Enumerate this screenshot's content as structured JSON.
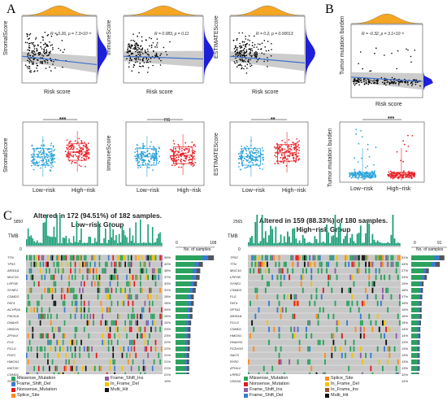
{
  "panels": {
    "a": "A",
    "b": "B",
    "c": "C"
  },
  "scatter_titles": [
    "StromalScore",
    "ImmuneScore",
    "ESTIMATEScore",
    "Tumor mutation burden"
  ],
  "box_titles": [
    "StromalScore",
    "ImmuneScore",
    "ESTIMATEScore",
    "Tumor mutation burden"
  ],
  "risk_label": "Risk score",
  "stats": [
    {
      "r": "R = 0.26, p = 7.3×10⁻⁶",
      "sig": "***"
    },
    {
      "r": "R = 0.083, p = 0.11",
      "sig": "ns"
    },
    {
      "r": "R = 0.2, p = 0.00013",
      "sig": "**"
    },
    {
      "r": "R = -0.32, p = 3.1×10⁻⁹",
      "sig": "***"
    }
  ],
  "groups": [
    "Low−risk",
    "High−risk"
  ],
  "colors": {
    "low": "#2aa2d8",
    "high": "#e8232a",
    "density": "#f5a623",
    "marginal": "#1f1fd8",
    "trend": "#3a6fd0",
    "band": "#bfbfbf",
    "gray": "#c8c8c8"
  },
  "oncoprints": [
    {
      "title": "Altered in 172 (94.51%) of 182 samples.",
      "group": "Low−risk Group",
      "tmb_label": "TMB",
      "tmb_max": "5850",
      "tmb_min": "0",
      "axis_0": "0",
      "axis_max": "108",
      "axis_label": "No. of samples",
      "genes": [
        "TTN",
        "TP53",
        "ARID1A",
        "MUC16",
        "LRP1B",
        "SYNE1",
        "CSMD3",
        "FAT4",
        "ACVR2A",
        "PIK3CA",
        "DNAH5",
        "OBSCN",
        "ZFHX4",
        "FLG",
        "PCLO",
        "PLEC",
        "HMCN1",
        "KMT2D",
        "CSMD1",
        "SYNE2"
      ],
      "pcts": [
        "59%",
        "42%",
        "38%",
        "37%",
        "33%",
        "31%",
        "28%",
        "28%",
        "26%",
        "26%",
        "24%",
        "23%",
        "23%",
        "22%",
        "22%",
        "21%",
        "21%",
        "21%",
        "21%",
        "19%"
      ]
    },
    {
      "title": "Altered in 159 (88.33%) of 180 samples.",
      "group": "High−risk Group",
      "tmb_label": "TMB",
      "tmb_max": "2565",
      "tmb_min": "0",
      "axis_0": "0",
      "axis_max": "91",
      "axis_label": "No. of samples",
      "genes": [
        "TP53",
        "TTN",
        "MUC16",
        "LRP1B",
        "SYNE1",
        "CSMD3",
        "FLG",
        "FAT4",
        "SPTA1",
        "ARID1A",
        "PCLO",
        "CSMD1",
        "HMCN1",
        "DNAH11",
        "PCDH15",
        "SACS",
        "RYR2",
        "ZFHX4",
        "LRRK2",
        "USH2A"
      ],
      "pcts": [
        "51%",
        "44%",
        "27%",
        "24%",
        "19%",
        "18%",
        "17%",
        "16%",
        "16%",
        "16%",
        "15%",
        "14%",
        "14%",
        "13%",
        "13%",
        "13%",
        "13%",
        "13%",
        "12%",
        "12%"
      ]
    }
  ],
  "legend_left": [
    {
      "label": "Missense_Mutation",
      "color": "#2ca25f"
    },
    {
      "label": "Frame_Shift_Ins",
      "color": "#8e5ea2"
    },
    {
      "label": "Frame_Shift_Del",
      "color": "#3a7bd5"
    },
    {
      "label": "In_Frame_Del",
      "color": "#f3c300"
    },
    {
      "label": "Nonsense_Mutation",
      "color": "#e41a1c"
    },
    {
      "label": "Multi_Hit",
      "color": "#111111"
    },
    {
      "label": "Splice_Site",
      "color": "#ff8c1a"
    }
  ],
  "legend_right": [
    {
      "label": "Missense_Mutation",
      "color": "#2ca25f"
    },
    {
      "label": "Splice_Site",
      "color": "#ff8c1a"
    },
    {
      "label": "Nonsense_Mutation",
      "color": "#e41a1c"
    },
    {
      "label": "In_Frame_Del",
      "color": "#f3c300"
    },
    {
      "label": "Frame_Shift_Ins",
      "color": "#8e5ea2"
    },
    {
      "label": "In_Frame_Ins",
      "color": "#a0522d"
    },
    {
      "label": "Frame_Shift_Del",
      "color": "#3a7bd5"
    },
    {
      "label": "Multi_Hit",
      "color": "#111111"
    }
  ]
}
